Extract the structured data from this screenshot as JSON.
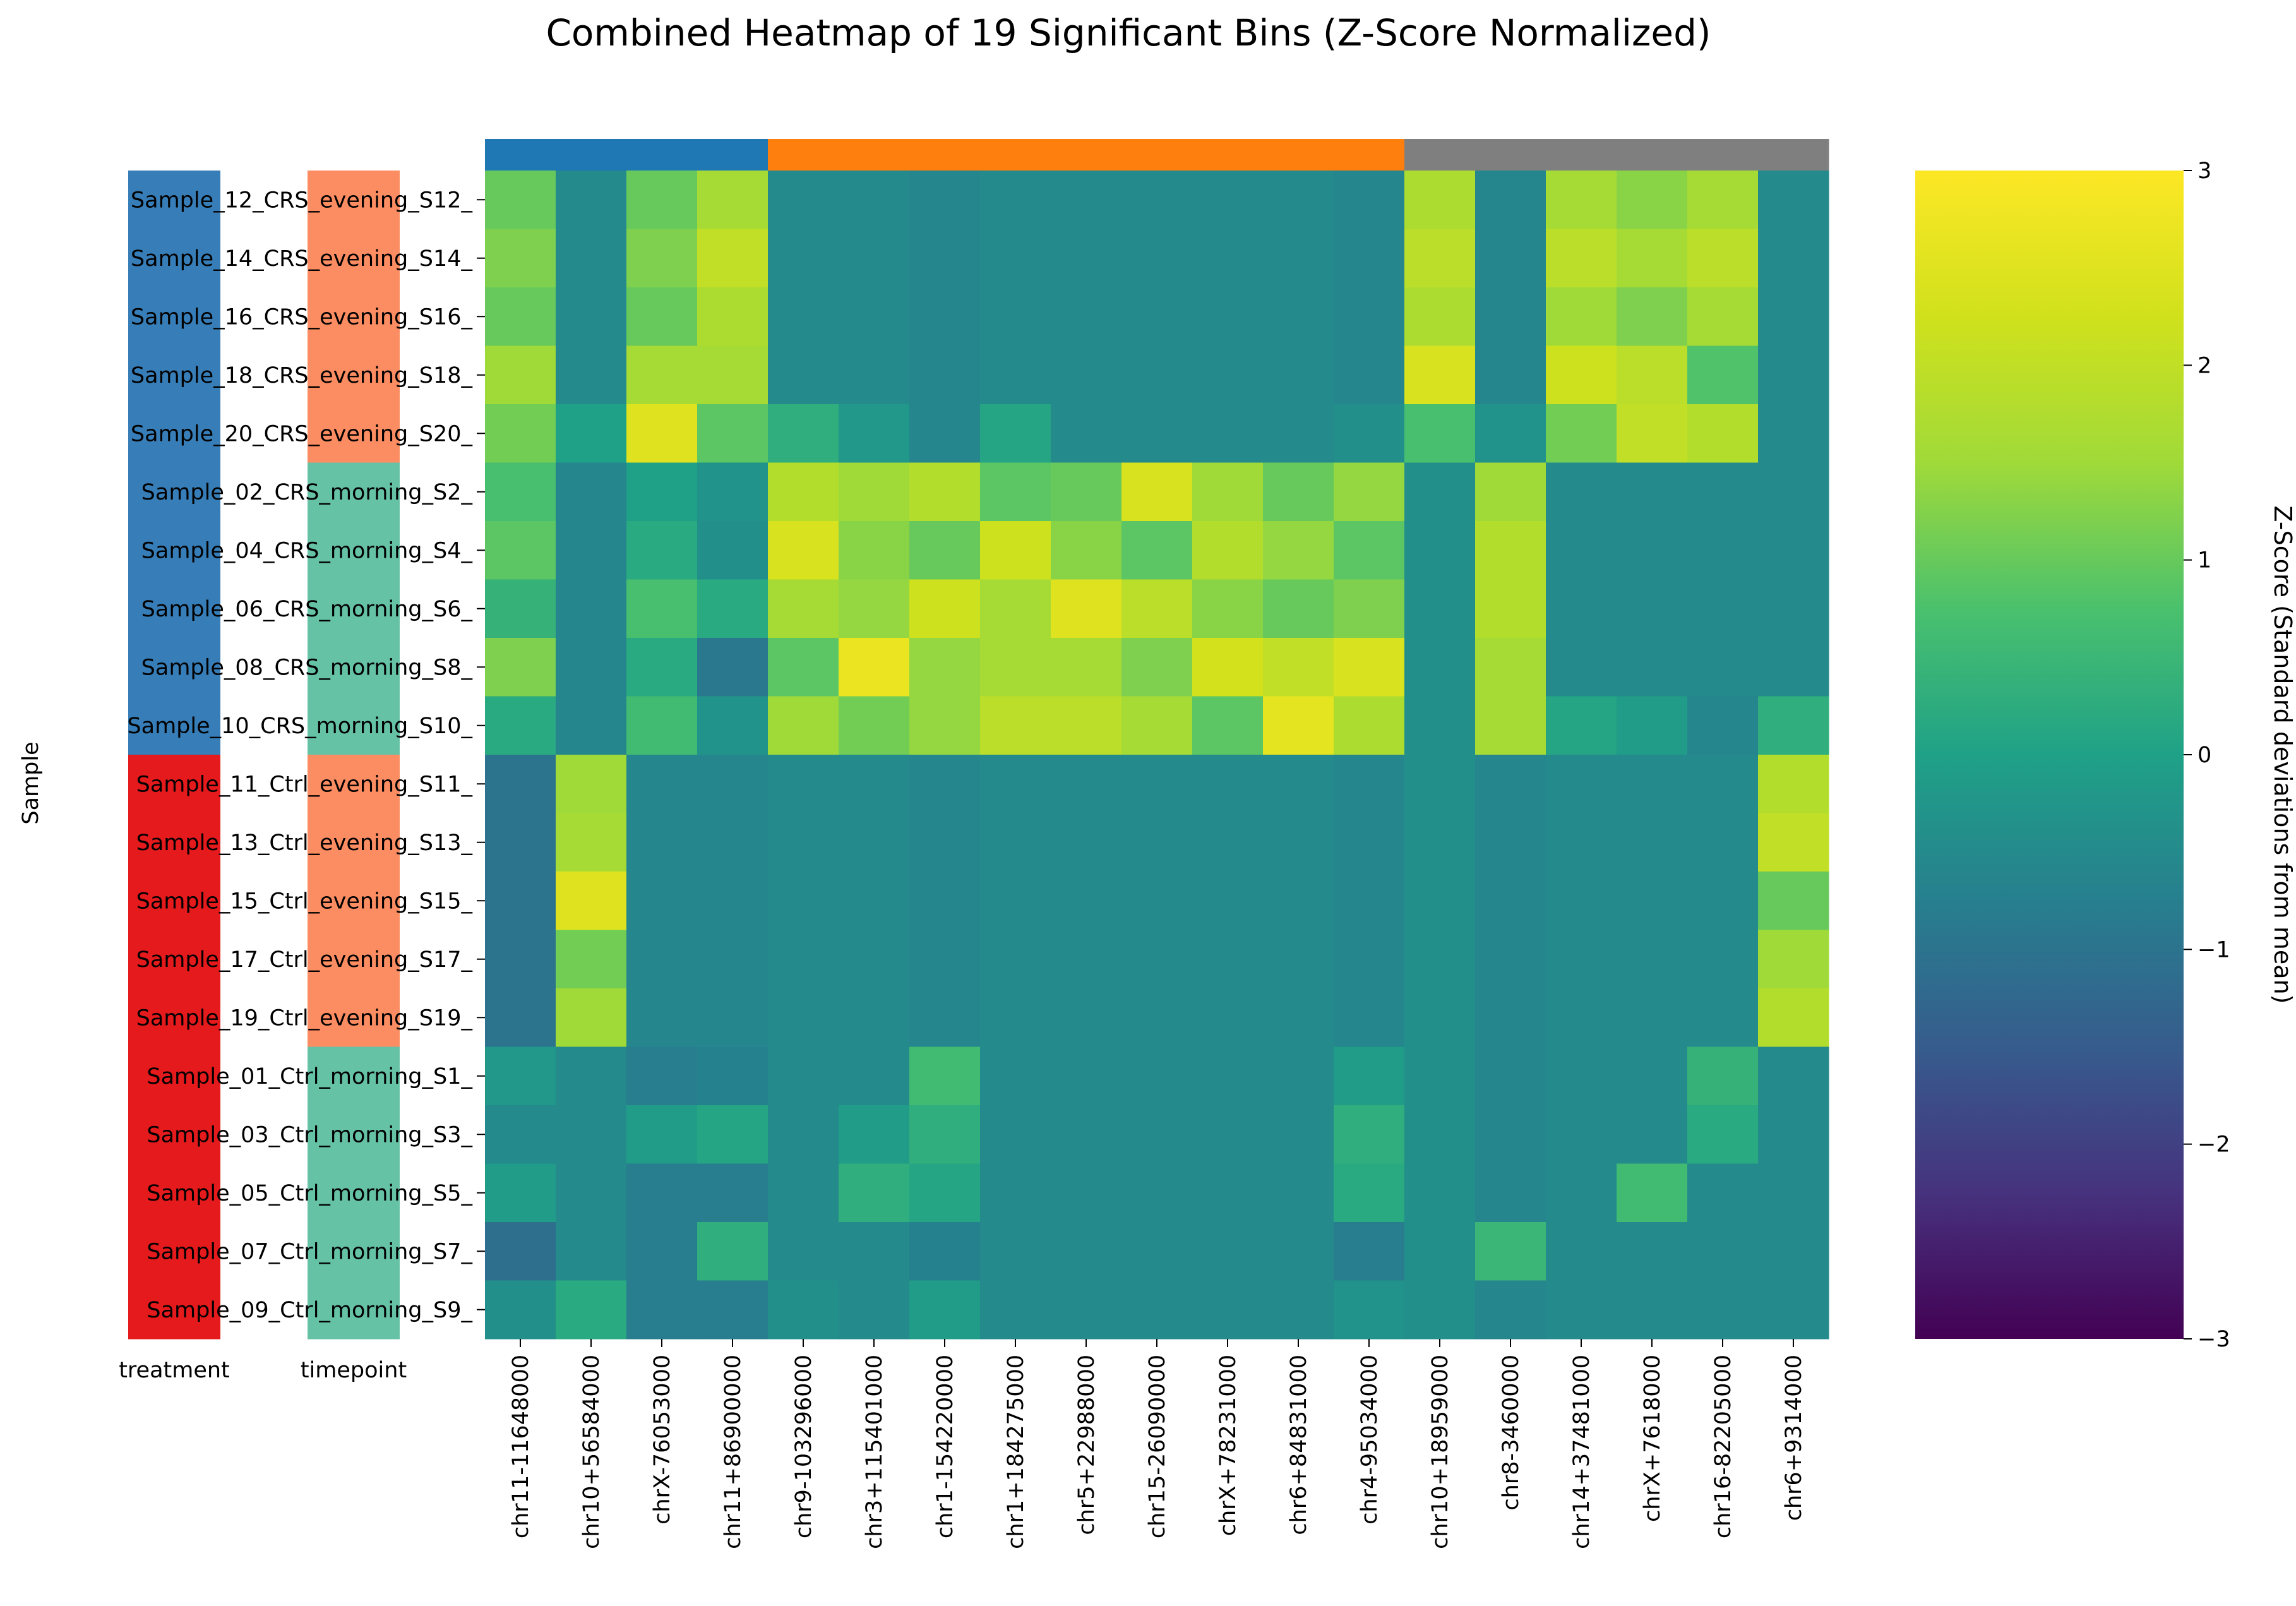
{
  "chart_data": {
    "type": "heatmap",
    "title": "Combined Heatmap of 19 Significant Bins (Z-Score Normalized)",
    "ylabel": "Sample",
    "rows": [
      "Sample_12_CRS_evening_S12_",
      "Sample_14_CRS_evening_S14_",
      "Sample_16_CRS_evening_S16_",
      "Sample_18_CRS_evening_S18_",
      "Sample_20_CRS_evening_S20_",
      "Sample_02_CRS_morning_S2_",
      "Sample_04_CRS_morning_S4_",
      "Sample_06_CRS_morning_S6_",
      "Sample_08_CRS_morning_S8_",
      "Sample_10_CRS_morning_S10_",
      "Sample_11_Ctrl_evening_S11_",
      "Sample_13_Ctrl_evening_S13_",
      "Sample_15_Ctrl_evening_S15_",
      "Sample_17_Ctrl_evening_S17_",
      "Sample_19_Ctrl_evening_S19_",
      "Sample_01_Ctrl_morning_S1_",
      "Sample_03_Ctrl_morning_S3_",
      "Sample_05_Ctrl_morning_S5_",
      "Sample_07_Ctrl_morning_S7_",
      "Sample_09_Ctrl_morning_S9_"
    ],
    "columns": [
      "chr11-11648000",
      "chr10+56584000",
      "chrX-76053000",
      "chr11+86900000",
      "chr9-103296000",
      "chr3+115401000",
      "chr1-154220000",
      "chr1+184275000",
      "chr5+22988000",
      "chr15-26090000",
      "chrX+78231000",
      "chr6+84831000",
      "chr4-95034000",
      "chr10+18959000",
      "chr8-3460000",
      "chr14+37481000",
      "chrX+7618000",
      "chr16-82205000",
      "chr6+9314000"
    ],
    "values": [
      [
        1.0,
        -0.5,
        1.0,
        1.6,
        -0.5,
        -0.5,
        -0.6,
        -0.5,
        -0.5,
        -0.5,
        -0.5,
        -0.5,
        -0.6,
        1.7,
        -0.6,
        1.6,
        1.3,
        1.6,
        -0.5
      ],
      [
        1.2,
        -0.5,
        1.2,
        2.0,
        -0.5,
        -0.5,
        -0.6,
        -0.5,
        -0.5,
        -0.5,
        -0.5,
        -0.5,
        -0.6,
        1.9,
        -0.6,
        1.9,
        1.6,
        1.9,
        -0.5
      ],
      [
        1.0,
        -0.5,
        1.0,
        1.7,
        -0.5,
        -0.5,
        -0.6,
        -0.5,
        -0.5,
        -0.5,
        -0.5,
        -0.5,
        -0.6,
        1.7,
        -0.6,
        1.5,
        1.2,
        1.6,
        -0.5
      ],
      [
        1.5,
        -0.5,
        1.6,
        1.6,
        -0.5,
        -0.5,
        -0.6,
        -0.5,
        -0.5,
        -0.5,
        -0.5,
        -0.5,
        -0.6,
        2.4,
        -0.6,
        2.2,
        1.9,
        0.8,
        -0.5
      ],
      [
        1.1,
        0.0,
        2.5,
        0.9,
        0.3,
        -0.2,
        -0.6,
        0.1,
        -0.5,
        -0.5,
        -0.5,
        -0.5,
        -0.4,
        0.7,
        -0.3,
        1.1,
        2.0,
        1.8,
        -0.5
      ],
      [
        0.7,
        -0.6,
        0.0,
        -0.3,
        1.8,
        1.5,
        1.8,
        0.9,
        1.0,
        2.4,
        1.5,
        1.0,
        1.4,
        -0.4,
        1.5,
        -0.5,
        -0.5,
        -0.5,
        -0.5
      ],
      [
        0.9,
        -0.6,
        0.2,
        -0.4,
        2.4,
        1.3,
        1.0,
        2.2,
        1.3,
        0.9,
        1.8,
        1.4,
        0.9,
        -0.4,
        1.8,
        -0.5,
        -0.5,
        -0.5,
        -0.5
      ],
      [
        0.4,
        -0.6,
        0.7,
        0.2,
        1.6,
        1.4,
        2.2,
        1.6,
        2.5,
        1.9,
        1.3,
        1.0,
        1.2,
        -0.4,
        1.8,
        -0.5,
        -0.5,
        -0.5,
        -0.5
      ],
      [
        1.2,
        -0.6,
        0.2,
        -0.9,
        0.9,
        2.7,
        1.4,
        1.6,
        1.6,
        1.2,
        2.3,
        2.0,
        2.4,
        -0.4,
        1.6,
        -0.5,
        -0.5,
        -0.5,
        -0.5
      ],
      [
        0.2,
        -0.6,
        0.6,
        -0.3,
        1.5,
        1.1,
        1.4,
        1.9,
        1.9,
        1.6,
        0.9,
        2.6,
        1.7,
        -0.4,
        1.6,
        0.1,
        -0.1,
        -0.6,
        0.3
      ],
      [
        -1.0,
        1.5,
        -0.6,
        -0.6,
        -0.5,
        -0.5,
        -0.6,
        -0.5,
        -0.5,
        -0.5,
        -0.5,
        -0.5,
        -0.6,
        -0.4,
        -0.6,
        -0.5,
        -0.5,
        -0.5,
        1.8
      ],
      [
        -1.0,
        1.6,
        -0.6,
        -0.6,
        -0.5,
        -0.5,
        -0.6,
        -0.5,
        -0.5,
        -0.5,
        -0.5,
        -0.5,
        -0.6,
        -0.4,
        -0.6,
        -0.5,
        -0.5,
        -0.5,
        2.0
      ],
      [
        -1.0,
        2.5,
        -0.6,
        -0.6,
        -0.5,
        -0.5,
        -0.6,
        -0.5,
        -0.5,
        -0.5,
        -0.5,
        -0.5,
        -0.6,
        -0.4,
        -0.6,
        -0.5,
        -0.5,
        -0.5,
        1.0
      ],
      [
        -1.0,
        1.1,
        -0.6,
        -0.6,
        -0.5,
        -0.5,
        -0.6,
        -0.5,
        -0.5,
        -0.5,
        -0.5,
        -0.5,
        -0.6,
        -0.4,
        -0.6,
        -0.5,
        -0.5,
        -0.5,
        1.5
      ],
      [
        -1.0,
        1.5,
        -0.6,
        -0.6,
        -0.5,
        -0.5,
        -0.6,
        -0.5,
        -0.5,
        -0.5,
        -0.5,
        -0.5,
        -0.6,
        -0.4,
        -0.6,
        -0.5,
        -0.5,
        -0.5,
        1.8
      ],
      [
        -0.2,
        -0.5,
        -0.8,
        -0.7,
        -0.5,
        -0.5,
        0.6,
        -0.5,
        -0.5,
        -0.5,
        -0.5,
        -0.5,
        -0.1,
        -0.4,
        -0.6,
        -0.5,
        -0.5,
        0.4,
        -0.5
      ],
      [
        -0.5,
        -0.5,
        -0.1,
        0.1,
        -0.5,
        -0.1,
        0.3,
        -0.5,
        -0.5,
        -0.5,
        -0.5,
        -0.5,
        0.3,
        -0.4,
        -0.6,
        -0.5,
        -0.5,
        0.2,
        -0.5
      ],
      [
        -0.1,
        -0.5,
        -0.8,
        -0.8,
        -0.5,
        0.3,
        0.1,
        -0.5,
        -0.5,
        -0.5,
        -0.5,
        -0.5,
        0.2,
        -0.4,
        -0.6,
        -0.5,
        0.6,
        -0.5,
        -0.5
      ],
      [
        -1.1,
        -0.5,
        -0.8,
        0.3,
        -0.5,
        -0.5,
        -0.7,
        -0.5,
        -0.5,
        -0.5,
        -0.5,
        -0.5,
        -0.8,
        -0.4,
        0.5,
        -0.5,
        -0.5,
        -0.5,
        -0.5
      ],
      [
        -0.4,
        0.2,
        -0.8,
        -0.8,
        -0.4,
        -0.5,
        -0.1,
        -0.5,
        -0.5,
        -0.5,
        -0.5,
        -0.5,
        -0.3,
        -0.4,
        -0.6,
        -0.5,
        -0.5,
        -0.5,
        -0.5
      ]
    ],
    "column_groups": [
      {
        "color": "#1f77b4",
        "count": 4
      },
      {
        "color": "#ff7f0e",
        "count": 9
      },
      {
        "color": "#7f7f7f",
        "count": 6
      }
    ],
    "row_annotations": [
      {
        "label": "treatment",
        "colors": {
          "CRS": "#377eb8",
          "Ctrl": "#e41a1c"
        },
        "values": [
          "CRS",
          "CRS",
          "CRS",
          "CRS",
          "CRS",
          "CRS",
          "CRS",
          "CRS",
          "CRS",
          "CRS",
          "Ctrl",
          "Ctrl",
          "Ctrl",
          "Ctrl",
          "Ctrl",
          "Ctrl",
          "Ctrl",
          "Ctrl",
          "Ctrl",
          "Ctrl"
        ]
      },
      {
        "label": "timepoint",
        "colors": {
          "evening": "#fc8d62",
          "morning": "#66c2a5"
        },
        "values": [
          "evening",
          "evening",
          "evening",
          "evening",
          "evening",
          "morning",
          "morning",
          "morning",
          "morning",
          "morning",
          "evening",
          "evening",
          "evening",
          "evening",
          "evening",
          "morning",
          "morning",
          "morning",
          "morning",
          "morning"
        ]
      }
    ],
    "colorbar": {
      "label": "Z-Score (Standard deviations from mean)",
      "colormap": "viridis",
      "range": [
        -3,
        3
      ],
      "ticks": [
        "3",
        "2",
        "1",
        "0",
        "−1",
        "−2",
        "−3"
      ]
    }
  }
}
